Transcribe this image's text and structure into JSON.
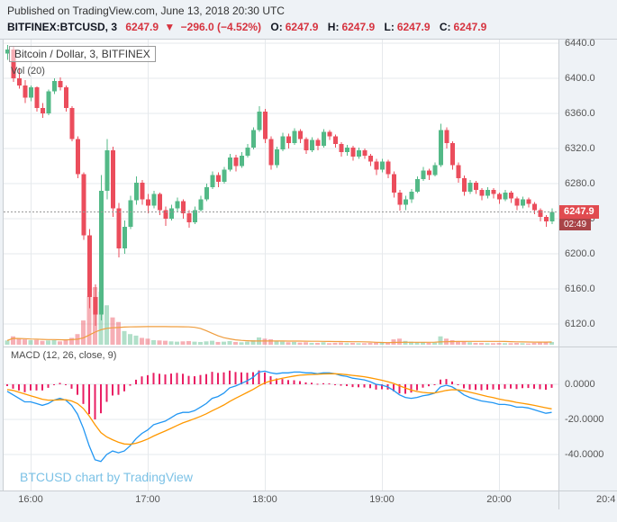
{
  "page": {
    "published_line": "Published on TradingView.com, June 13, 2018 20:30 UTC",
    "watermark": "BTCUSD chart by TradingView"
  },
  "ticker": {
    "symbol": "BITFINEX:BTCUSD, 3",
    "last": "6247.9",
    "direction": "▼",
    "change": "−296.0 (−4.52%)",
    "ohlc": [
      {
        "label": "O:",
        "value": "6247.9"
      },
      {
        "label": "H:",
        "value": "6247.9"
      },
      {
        "label": "L:",
        "value": "6247.9"
      },
      {
        "label": "C:",
        "value": "6247.9"
      }
    ]
  },
  "axes": {
    "price_ticks": [
      "6440.0",
      "6400.0",
      "6360.0",
      "6320.0",
      "6280.0",
      "6240.0",
      "6200.0",
      "6160.0",
      "6120.0"
    ],
    "macd_ticks": [
      "0.0000",
      "-20.0000",
      "-40.0000"
    ],
    "time_ticks": [
      "16:00",
      "17:00",
      "18:00",
      "19:00",
      "20:00"
    ],
    "time_corner": "20:4",
    "price_badge": "6247.9",
    "countdown_badge": "02:49"
  },
  "colors": {
    "background": "#eef2f6",
    "pane": "#ffffff",
    "grid": "#e6e9ec",
    "divider": "#c9ced3",
    "up": "#53b987",
    "down": "#eb4d5c",
    "vol_up": "rgba(83,185,135,0.45)",
    "vol_down": "rgba(235,77,92,0.45)",
    "vol_ma": "#ef9d3e",
    "hist": "#e91e63",
    "macd_line": "#2196f3",
    "signal_line": "#ff9800",
    "price_line": "#999999",
    "badge": "#e14b50",
    "countdown_badge": "#a94448",
    "ticker_red": "#d6333f",
    "watermark": "#7cc2e6"
  },
  "chart_data": [
    {
      "type": "candlestick",
      "title": "Bitcoin / Dollar, 3, BITFINEX",
      "volume_legend": "Vol (20)",
      "interval_minutes": 3,
      "start_time": "15:48",
      "last_price": 6247.9,
      "ylim": [
        6094,
        6444
      ],
      "time_ticks": [
        "16:00",
        "17:00",
        "18:00",
        "19:00",
        "20:00"
      ],
      "ohlcv_columns": [
        "open",
        "high",
        "low",
        "close",
        "volume"
      ],
      "candles": [
        [
          6428,
          6438,
          6421,
          6433,
          28
        ],
        [
          6433,
          6436,
          6396,
          6400,
          55
        ],
        [
          6400,
          6412,
          6388,
          6392,
          40
        ],
        [
          6392,
          6398,
          6372,
          6378,
          35
        ],
        [
          6378,
          6392,
          6374,
          6390,
          30
        ],
        [
          6390,
          6391,
          6362,
          6366,
          32
        ],
        [
          6366,
          6372,
          6355,
          6360,
          25
        ],
        [
          6360,
          6387,
          6358,
          6385,
          28
        ],
        [
          6385,
          6400,
          6382,
          6397,
          30
        ],
        [
          6397,
          6401,
          6386,
          6390,
          22
        ],
        [
          6390,
          6392,
          6362,
          6366,
          30
        ],
        [
          6366,
          6368,
          6328,
          6331,
          45
        ],
        [
          6331,
          6334,
          6286,
          6291,
          70
        ],
        [
          6291,
          6293,
          6216,
          6221,
          160
        ],
        [
          6221,
          6228,
          6138,
          6151,
          320
        ],
        [
          6151,
          6165,
          6118,
          6131,
          380
        ],
        [
          6131,
          6290,
          6124,
          6272,
          350
        ],
        [
          6272,
          6331,
          6262,
          6318,
          260
        ],
        [
          6318,
          6322,
          6242,
          6252,
          180
        ],
        [
          6252,
          6258,
          6196,
          6206,
          150
        ],
        [
          6206,
          6238,
          6200,
          6231,
          90
        ],
        [
          6231,
          6266,
          6228,
          6261,
          70
        ],
        [
          6261,
          6288,
          6256,
          6281,
          60
        ],
        [
          6281,
          6284,
          6256,
          6262,
          45
        ],
        [
          6262,
          6268,
          6246,
          6255,
          40
        ],
        [
          6255,
          6272,
          6252,
          6268,
          30
        ],
        [
          6268,
          6270,
          6244,
          6250,
          28
        ],
        [
          6250,
          6254,
          6232,
          6240,
          26
        ],
        [
          6240,
          6256,
          6238,
          6252,
          22
        ],
        [
          6252,
          6264,
          6248,
          6260,
          20
        ],
        [
          6260,
          6262,
          6240,
          6246,
          22
        ],
        [
          6246,
          6250,
          6230,
          6236,
          24
        ],
        [
          6236,
          6254,
          6234,
          6250,
          20
        ],
        [
          6250,
          6266,
          6248,
          6262,
          18
        ],
        [
          6262,
          6280,
          6260,
          6276,
          22
        ],
        [
          6276,
          6294,
          6274,
          6290,
          26
        ],
        [
          6290,
          6293,
          6276,
          6282,
          18
        ],
        [
          6282,
          6299,
          6280,
          6296,
          20
        ],
        [
          6296,
          6314,
          6294,
          6310,
          24
        ],
        [
          6310,
          6313,
          6294,
          6300,
          18
        ],
        [
          6300,
          6316,
          6298,
          6312,
          16
        ],
        [
          6312,
          6325,
          6310,
          6321,
          20
        ],
        [
          6321,
          6344,
          6319,
          6341,
          30
        ],
        [
          6341,
          6368,
          6339,
          6362,
          48
        ],
        [
          6362,
          6365,
          6326,
          6331,
          40
        ],
        [
          6331,
          6334,
          6296,
          6301,
          36
        ],
        [
          6301,
          6322,
          6298,
          6319,
          22
        ],
        [
          6319,
          6338,
          6317,
          6334,
          20
        ],
        [
          6334,
          6337,
          6320,
          6326,
          16
        ],
        [
          6326,
          6343,
          6324,
          6340,
          18
        ],
        [
          6340,
          6342,
          6326,
          6331,
          14
        ],
        [
          6331,
          6333,
          6314,
          6318,
          16
        ],
        [
          6318,
          6333,
          6316,
          6330,
          12
        ],
        [
          6330,
          6332,
          6318,
          6323,
          12
        ],
        [
          6323,
          6342,
          6321,
          6339,
          16
        ],
        [
          6339,
          6341,
          6330,
          6334,
          10
        ],
        [
          6334,
          6336,
          6321,
          6325,
          12
        ],
        [
          6325,
          6327,
          6311,
          6316,
          14
        ],
        [
          6316,
          6324,
          6312,
          6321,
          10
        ],
        [
          6321,
          6323,
          6306,
          6311,
          12
        ],
        [
          6311,
          6321,
          6308,
          6318,
          10
        ],
        [
          6318,
          6320,
          6308,
          6312,
          10
        ],
        [
          6312,
          6314,
          6300,
          6305,
          12
        ],
        [
          6305,
          6308,
          6290,
          6296,
          14
        ],
        [
          6296,
          6308,
          6293,
          6305,
          12
        ],
        [
          6305,
          6307,
          6286,
          6291,
          16
        ],
        [
          6291,
          6294,
          6264,
          6270,
          35
        ],
        [
          6270,
          6273,
          6249,
          6256,
          40
        ],
        [
          6256,
          6266,
          6250,
          6262,
          25
        ],
        [
          6262,
          6274,
          6258,
          6271,
          20
        ],
        [
          6271,
          6288,
          6269,
          6285,
          18
        ],
        [
          6285,
          6299,
          6283,
          6295,
          16
        ],
        [
          6295,
          6297,
          6284,
          6290,
          12
        ],
        [
          6290,
          6304,
          6288,
          6301,
          14
        ],
        [
          6301,
          6348,
          6299,
          6341,
          55
        ],
        [
          6341,
          6344,
          6320,
          6326,
          40
        ],
        [
          6326,
          6328,
          6296,
          6301,
          30
        ],
        [
          6301,
          6304,
          6281,
          6286,
          24
        ],
        [
          6286,
          6289,
          6266,
          6271,
          22
        ],
        [
          6271,
          6284,
          6268,
          6281,
          16
        ],
        [
          6281,
          6283,
          6268,
          6273,
          12
        ],
        [
          6273,
          6275,
          6261,
          6266,
          12
        ],
        [
          6266,
          6276,
          6263,
          6273,
          10
        ],
        [
          6273,
          6275,
          6263,
          6268,
          10
        ],
        [
          6268,
          6270,
          6257,
          6262,
          12
        ],
        [
          6262,
          6273,
          6260,
          6270,
          10
        ],
        [
          6270,
          6272,
          6258,
          6263,
          10
        ],
        [
          6263,
          6265,
          6250,
          6255,
          12
        ],
        [
          6255,
          6265,
          6252,
          6262,
          10
        ],
        [
          6262,
          6264,
          6253,
          6257,
          8
        ],
        [
          6257,
          6259,
          6245,
          6250,
          12
        ],
        [
          6250,
          6252,
          6237,
          6242,
          14
        ],
        [
          6242,
          6244,
          6231,
          6237,
          16
        ],
        [
          6237,
          6252,
          6234,
          6247.9,
          18
        ]
      ]
    },
    {
      "type": "macd",
      "title": "MACD (12, 26, close, 9)",
      "params": {
        "fast": 12,
        "slow": 26,
        "source": "close",
        "signal": 9
      },
      "ylim": [
        -60,
        21
      ],
      "ticks": [
        "0.0000",
        "-20.0000",
        "-40.0000"
      ],
      "macd": [
        -4,
        -6,
        -8,
        -10,
        -10,
        -11,
        -12,
        -11,
        -9,
        -8,
        -9,
        -12,
        -17,
        -25,
        -35,
        -43,
        -44,
        -40,
        -38,
        -39,
        -38,
        -35,
        -31,
        -28,
        -26,
        -23,
        -22,
        -21,
        -19,
        -17,
        -16,
        -16,
        -15,
        -13,
        -11,
        -8,
        -7,
        -5,
        -2,
        -1,
        0.5,
        2,
        4,
        7,
        7.5,
        6.5,
        6,
        6.5,
        6.5,
        7,
        7,
        6.5,
        6.5,
        6,
        6.5,
        6.5,
        6,
        5,
        4.5,
        3.5,
        3,
        2.5,
        1.5,
        0,
        -0.5,
        -1.5,
        -3.5,
        -6,
        -7.5,
        -8,
        -7.5,
        -6.5,
        -6,
        -5,
        -1.5,
        -0.5,
        -1.5,
        -3.5,
        -6,
        -7.5,
        -8.5,
        -9.5,
        -10,
        -10.5,
        -11.5,
        -11.5,
        -12,
        -13,
        -13,
        -13.5,
        -14.5,
        -15.5,
        -16.5,
        -16
      ],
      "signal": [
        -3,
        -3.5,
        -4.5,
        -5.5,
        -6.5,
        -7.5,
        -8.5,
        -9,
        -9,
        -8.8,
        -8.8,
        -9.5,
        -11,
        -13.8,
        -18,
        -23,
        -27.5,
        -30,
        -31.6,
        -33,
        -34,
        -34.2,
        -33.6,
        -32.5,
        -31.2,
        -29.5,
        -28,
        -26.6,
        -25.1,
        -23.5,
        -22,
        -20.8,
        -19.6,
        -18.3,
        -16.8,
        -15.1,
        -13.5,
        -11.8,
        -9.8,
        -8,
        -6.3,
        -4.6,
        -2.9,
        -0.9,
        0.8,
        1.9,
        2.7,
        3.5,
        4.1,
        4.7,
        5.2,
        5.4,
        5.6,
        5.7,
        5.9,
        6,
        6,
        5.8,
        5.5,
        5.1,
        4.7,
        4.3,
        3.7,
        3,
        2.3,
        1.5,
        0.5,
        -0.8,
        -2.1,
        -3.3,
        -4.1,
        -4.6,
        -4.9,
        -4.9,
        -4.2,
        -3.5,
        -3.1,
        -3.2,
        -3.7,
        -4.5,
        -5.3,
        -6.1,
        -6.9,
        -7.6,
        -8.4,
        -9,
        -9.6,
        -10.3,
        -10.8,
        -11.4,
        -12,
        -12.7,
        -13.4,
        -14
      ],
      "histogram": [
        -1,
        -2.5,
        -3.5,
        -4.5,
        -3.5,
        -3.5,
        -3.5,
        -2,
        0,
        0.8,
        -0.2,
        -2.5,
        -6,
        -11.2,
        -17,
        -20,
        -16.5,
        -10,
        -6.4,
        -6,
        -4,
        -0.8,
        2.6,
        4.5,
        5.2,
        6.5,
        6,
        5.6,
        6.1,
        6.5,
        6,
        4.8,
        4.6,
        5.3,
        5.8,
        7.1,
        6.5,
        6.8,
        7.8,
        7,
        6.8,
        6.6,
        6.9,
        7.9,
        6.7,
        4.6,
        3.3,
        3,
        2.4,
        2.3,
        1.8,
        1.1,
        0.9,
        0.3,
        0.6,
        0.5,
        0,
        -0.8,
        -1,
        -1.6,
        -1.7,
        -1.8,
        -2.2,
        -3,
        -2.8,
        -3,
        -4,
        -5.2,
        -5.4,
        -4.7,
        -3.4,
        -1.9,
        -1.1,
        -0.1,
        2.7,
        3,
        1.6,
        -0.3,
        -2.3,
        -3,
        -3.2,
        -3.4,
        -3.1,
        -2.9,
        -3.1,
        -2.5,
        -2.4,
        -2.7,
        -2.2,
        -2.1,
        -2.5,
        -2.8,
        -3.1,
        -2
      ]
    }
  ]
}
